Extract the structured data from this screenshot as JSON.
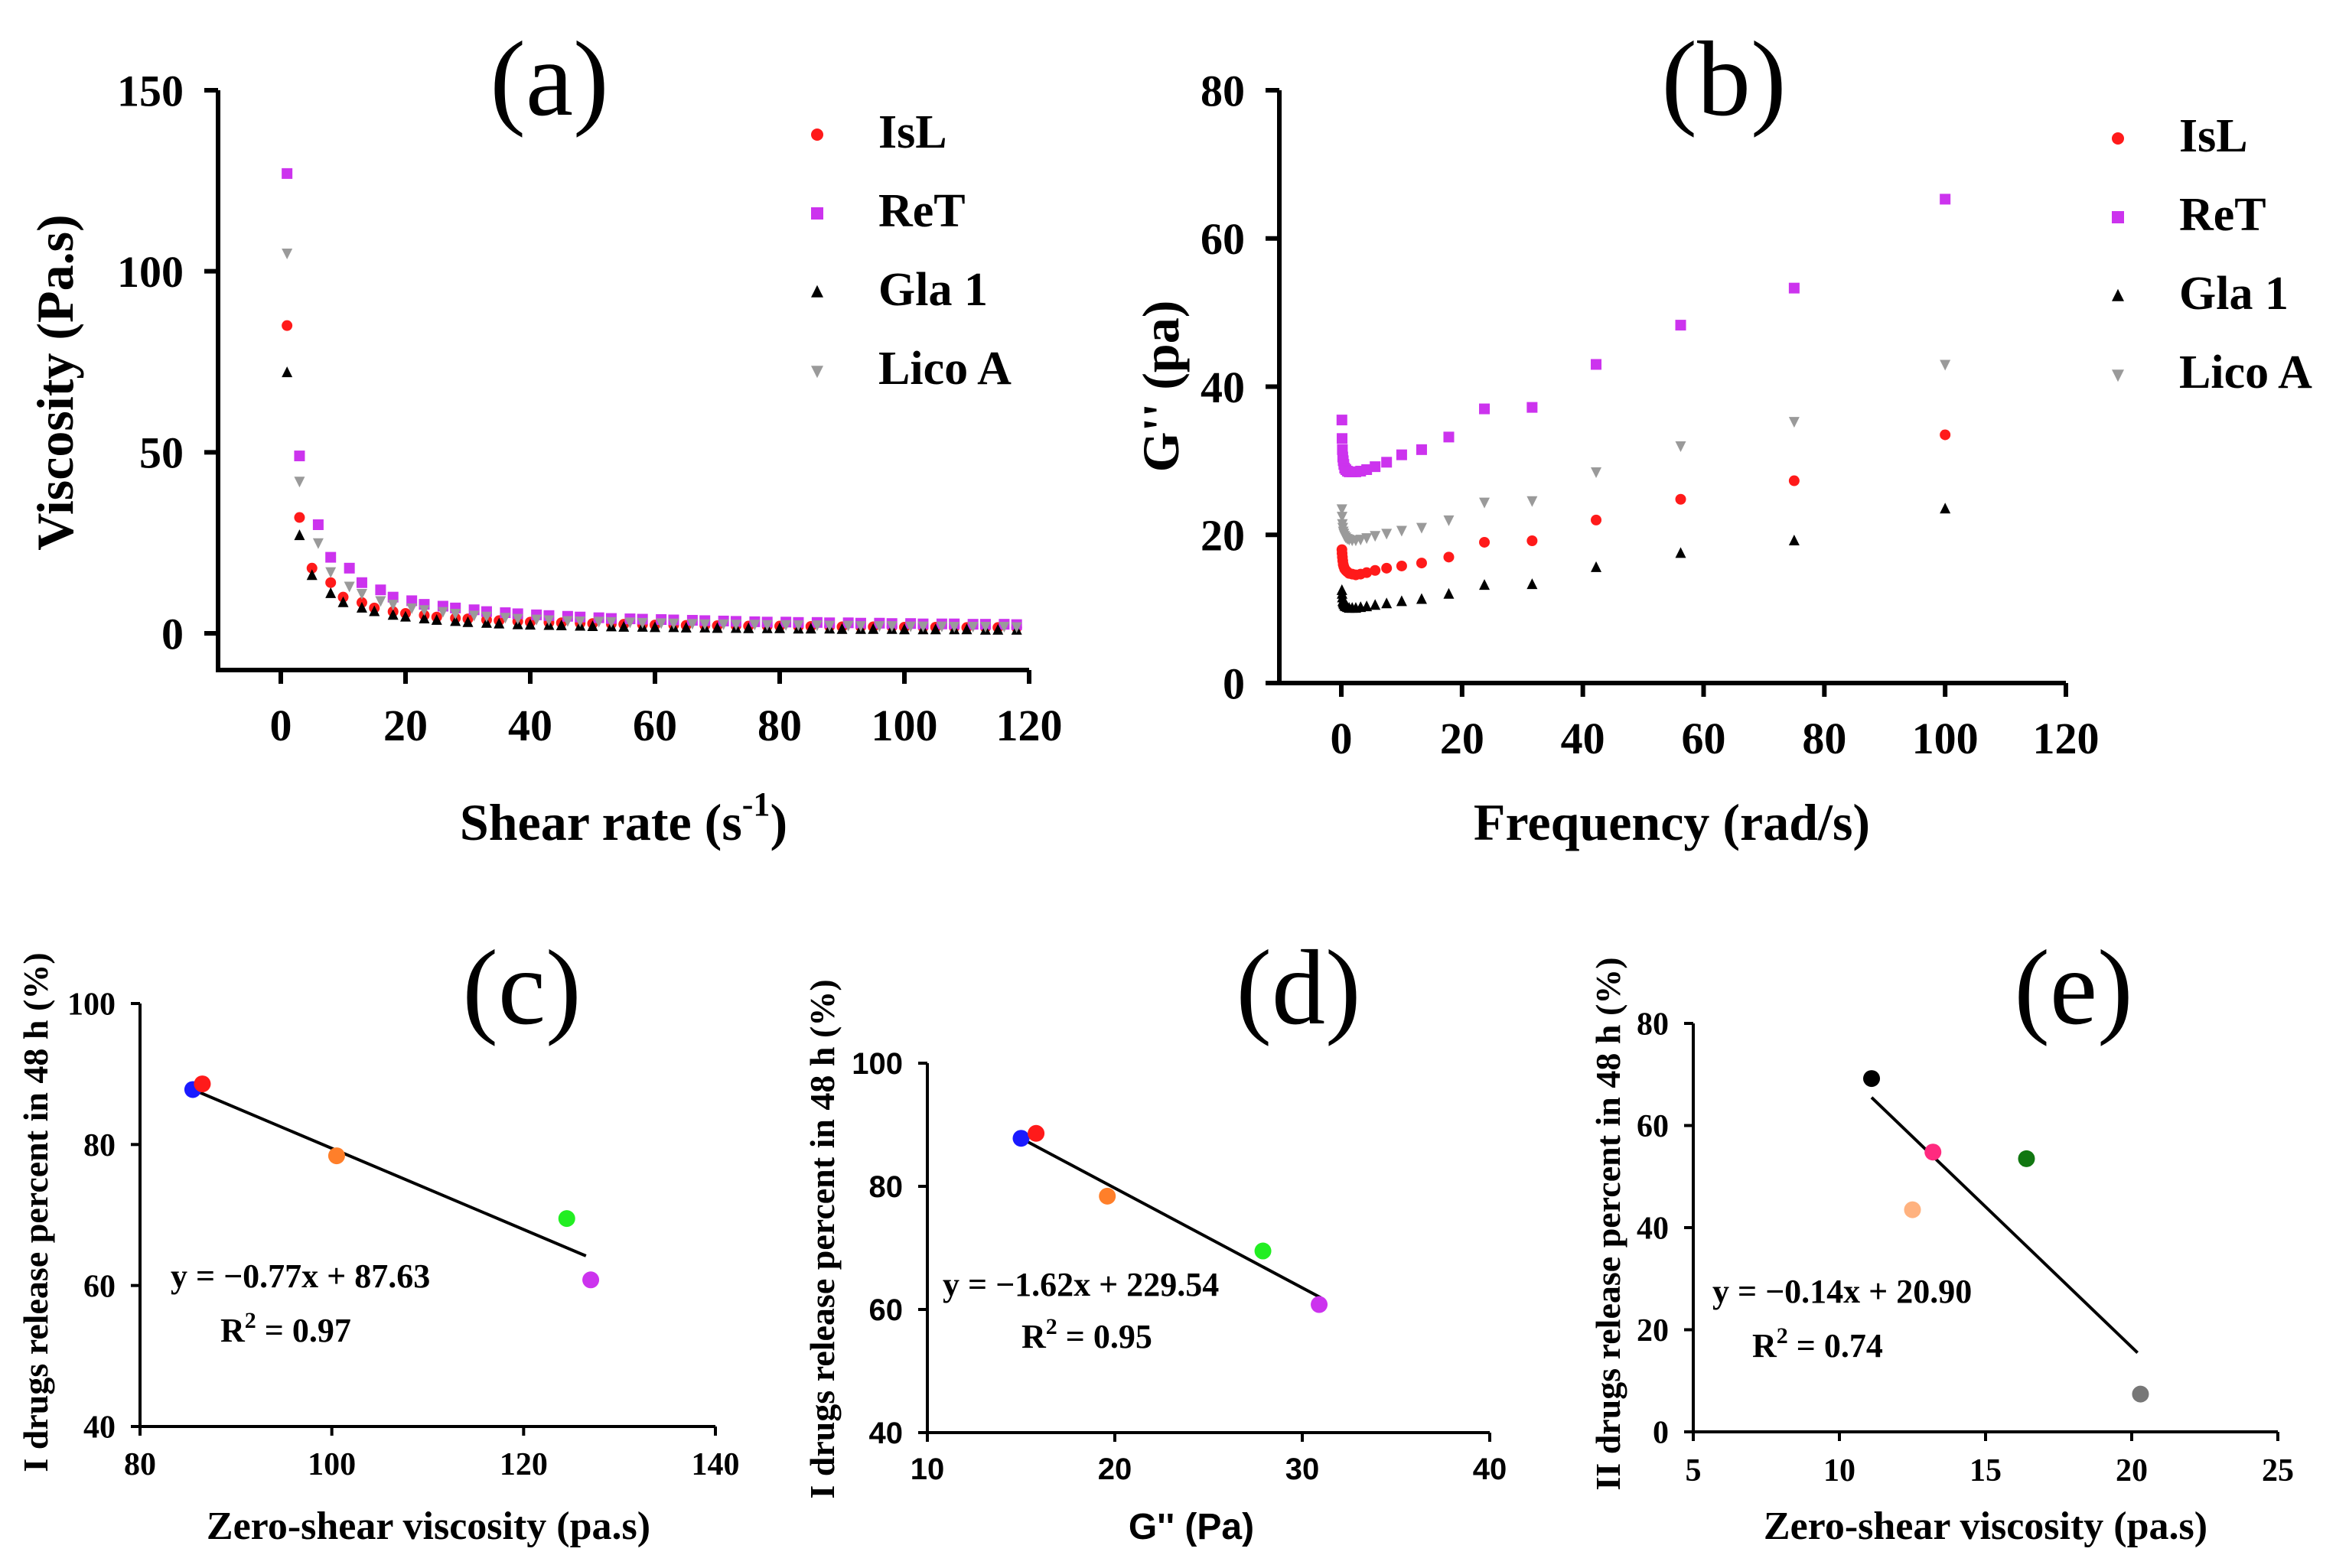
{
  "colors": {
    "isl": "#ff1a1a",
    "ret": "#cc33ee",
    "gla1": "#000000",
    "licoa": "#9a9a9a",
    "blue": "#1a1aff",
    "red": "#ff1a1a",
    "orange": "#ff7f2a",
    "green": "#22ee22",
    "purple": "#cc33ee",
    "black": "#000000",
    "pink": "#ff2a7f",
    "peach": "#ffb27f",
    "darkgreen": "#117711",
    "gray": "#777777"
  },
  "chart_data": [
    {
      "id": "a",
      "type": "scatter",
      "panel_label": "(a)",
      "xlabel_main": "Shear rate (s",
      "xlabel_sup": "-1",
      "xlabel_end": ")",
      "ylabel": "Viscosity (Pa.s)",
      "xlim": [
        -10,
        120
      ],
      "ylim": [
        -10,
        150
      ],
      "xticks": [
        0,
        20,
        40,
        60,
        80,
        100,
        120
      ],
      "yticks": [
        0,
        50,
        100,
        150
      ],
      "legend": [
        "IsL",
        "ReT",
        "Gla 1",
        "Lico A"
      ],
      "series": [
        {
          "name": "IsL",
          "marker": "circle",
          "color_key": "isl",
          "x": [
            1,
            3,
            5,
            8,
            10,
            13,
            15,
            18,
            20,
            23,
            25,
            28,
            30,
            33,
            35,
            38,
            40,
            43,
            45,
            48,
            50,
            53,
            55,
            58,
            60,
            63,
            65,
            68,
            70,
            73,
            75,
            78,
            80,
            83,
            85,
            88,
            90,
            93,
            95,
            98,
            100,
            103,
            105,
            108,
            110,
            113,
            115,
            118
          ],
          "y": [
            85,
            32,
            18,
            14,
            10,
            8.5,
            7,
            6,
            5.5,
            5,
            4.5,
            4.2,
            4,
            3.7,
            3.5,
            3.3,
            3.1,
            3,
            2.9,
            2.8,
            2.7,
            2.6,
            2.5,
            2.4,
            2.3,
            2.3,
            2.2,
            2.2,
            2.1,
            2.1,
            2,
            2,
            2,
            1.9,
            1.9,
            1.9,
            1.8,
            1.8,
            1.8,
            1.8,
            1.7,
            1.7,
            1.7,
            1.7,
            1.6,
            1.6,
            1.6,
            1.6
          ]
        },
        {
          "name": "ReT",
          "marker": "square",
          "color_key": "ret",
          "x": [
            1,
            3,
            6,
            8,
            11,
            13,
            16,
            18,
            21,
            23,
            26,
            28,
            31,
            33,
            36,
            38,
            41,
            43,
            46,
            48,
            51,
            53,
            56,
            58,
            61,
            63,
            66,
            68,
            71,
            73,
            76,
            78,
            81,
            83,
            86,
            88,
            91,
            93,
            96,
            98,
            101,
            103,
            106,
            108,
            111,
            113,
            116,
            118
          ],
          "y": [
            127,
            49,
            30,
            21,
            18,
            14,
            12,
            10,
            9,
            8,
            7.5,
            7,
            6.5,
            6,
            5.7,
            5.4,
            5.1,
            4.9,
            4.7,
            4.5,
            4.3,
            4.1,
            4,
            3.9,
            3.8,
            3.7,
            3.6,
            3.5,
            3.4,
            3.3,
            3.2,
            3.1,
            3.1,
            3,
            3,
            2.9,
            2.9,
            2.8,
            2.8,
            2.7,
            2.7,
            2.6,
            2.6,
            2.6,
            2.5,
            2.5,
            2.5,
            2.4
          ]
        },
        {
          "name": "Gla 1",
          "marker": "triangle",
          "color_key": "gla1",
          "x": [
            1,
            3,
            5,
            8,
            10,
            13,
            15,
            18,
            20,
            23,
            25,
            28,
            30,
            33,
            35,
            38,
            40,
            43,
            45,
            48,
            50,
            53,
            55,
            58,
            60,
            63,
            65,
            68,
            70,
            73,
            75,
            78,
            80,
            83,
            85,
            88,
            90,
            93,
            95,
            98,
            100,
            103,
            105,
            108,
            110,
            113,
            115,
            118
          ],
          "y": [
            72,
            27,
            16,
            11,
            8.5,
            7,
            6,
            5,
            4.5,
            4,
            3.6,
            3.3,
            3,
            2.8,
            2.6,
            2.4,
            2.3,
            2.2,
            2.1,
            2,
            1.9,
            1.8,
            1.7,
            1.7,
            1.6,
            1.6,
            1.5,
            1.5,
            1.4,
            1.4,
            1.3,
            1.3,
            1.3,
            1.2,
            1.2,
            1.2,
            1.1,
            1.1,
            1.1,
            1.1,
            1,
            1,
            1,
            1,
            1,
            0.9,
            0.9,
            0.9
          ]
        },
        {
          "name": "Lico A",
          "marker": "triangle-down",
          "color_key": "licoa",
          "x": [
            1,
            3,
            6,
            8,
            11,
            13,
            16,
            18,
            21,
            23,
            26,
            28,
            31,
            33,
            36,
            38,
            41,
            43,
            46,
            48,
            51,
            53,
            56,
            58,
            61,
            63,
            66,
            68,
            71,
            73,
            76,
            78,
            81,
            83,
            86,
            88,
            91,
            93,
            96,
            98,
            101,
            103,
            106,
            108,
            111,
            113,
            116,
            118
          ],
          "y": [
            105,
            42,
            25,
            17,
            13,
            11,
            9,
            8,
            7,
            6.5,
            6,
            5.5,
            5,
            4.7,
            4.4,
            4.1,
            3.9,
            3.7,
            3.5,
            3.4,
            3.3,
            3.2,
            3.1,
            3,
            2.9,
            2.8,
            2.7,
            2.6,
            2.6,
            2.5,
            2.5,
            2.4,
            2.4,
            2.3,
            2.3,
            2.2,
            2.2,
            2.1,
            2.1,
            2.1,
            2,
            2,
            2,
            1.9,
            1.9,
            1.9,
            1.9,
            1.8
          ]
        }
      ]
    },
    {
      "id": "b",
      "type": "scatter",
      "panel_label": "(b)",
      "xlabel": "Frequency (rad/s)",
      "ylabel": "G'' (pa)",
      "xlim": [
        -10,
        120
      ],
      "ylim": [
        0,
        80
      ],
      "xticks": [
        0,
        20,
        40,
        60,
        80,
        100,
        120
      ],
      "yticks": [
        0,
        20,
        40,
        60,
        80
      ],
      "legend": [
        "IsL",
        "ReT",
        "Gla 1",
        "Lico A"
      ],
      "series": [
        {
          "name": "IsL",
          "marker": "circle",
          "color_key": "isl",
          "x": [
            0.1,
            0.13,
            0.18,
            0.24,
            0.32,
            0.42,
            0.56,
            0.75,
            1,
            1.3,
            1.8,
            2.4,
            3.2,
            4.2,
            5.6,
            7.5,
            10,
            13.3,
            17.8,
            23.7,
            31.6,
            42.2,
            56.2,
            75,
            100
          ],
          "y": [
            18,
            17.5,
            17,
            16.5,
            16,
            15.7,
            15.4,
            15.2,
            15,
            14.8,
            14.7,
            14.6,
            14.7,
            14.9,
            15.2,
            15.5,
            15.8,
            16.2,
            17,
            19,
            19.2,
            22,
            24.8,
            27.3,
            33.5
          ]
        },
        {
          "name": "ReT",
          "marker": "square",
          "color_key": "ret",
          "x": [
            0.1,
            0.13,
            0.18,
            0.24,
            0.32,
            0.42,
            0.56,
            0.75,
            1,
            1.3,
            1.8,
            2.4,
            3.2,
            4.2,
            5.6,
            7.5,
            10,
            13.3,
            17.8,
            23.7,
            31.6,
            42.2,
            56.2,
            75,
            100
          ],
          "y": [
            35.5,
            33,
            31.5,
            30.5,
            30,
            29.5,
            29,
            28.8,
            28.6,
            28.5,
            28.5,
            28.5,
            28.6,
            28.8,
            29.2,
            29.8,
            30.8,
            31.5,
            33.2,
            37,
            37.2,
            43,
            48.3,
            53.3,
            65.3
          ]
        },
        {
          "name": "Gla 1",
          "marker": "triangle",
          "color_key": "gla1",
          "x": [
            0.1,
            0.13,
            0.18,
            0.24,
            0.32,
            0.42,
            0.56,
            0.75,
            1,
            1.3,
            1.8,
            2.4,
            3.2,
            4.2,
            5.6,
            7.5,
            10,
            13.3,
            17.8,
            23.7,
            31.6,
            42.2,
            56.2,
            75,
            100
          ],
          "y": [
            12.5,
            12,
            11.5,
            11,
            10.8,
            10.6,
            10.4,
            10.3,
            10.2,
            10.1,
            10.1,
            10.1,
            10.2,
            10.3,
            10.5,
            10.7,
            11,
            11.3,
            12,
            13.2,
            13.3,
            15.6,
            17.5,
            19.2,
            23.5
          ]
        },
        {
          "name": "Lico A",
          "marker": "triangle-down",
          "color_key": "licoa",
          "x": [
            0.1,
            0.13,
            0.18,
            0.24,
            0.32,
            0.42,
            0.56,
            0.75,
            1,
            1.3,
            1.8,
            2.4,
            3.2,
            4.2,
            5.6,
            7.5,
            10,
            13.3,
            17.8,
            23.7,
            31.6,
            42.2,
            56.2,
            75,
            100
          ],
          "y": [
            23.5,
            22.5,
            21.5,
            21,
            20.5,
            20.2,
            19.9,
            19.7,
            19.5,
            19.4,
            19.3,
            19.3,
            19.4,
            19.6,
            19.9,
            20.2,
            20.6,
            21,
            22,
            24.4,
            24.6,
            28.5,
            32,
            35.3,
            43
          ]
        }
      ]
    },
    {
      "id": "c",
      "type": "scatter",
      "panel_label": "(c)",
      "xlabel": "Zero-shear viscosity (pa.s)",
      "ylabel": "I drugs release percent in 48 h (%)",
      "xlim": [
        80,
        140
      ],
      "ylim": [
        40,
        100
      ],
      "xticks": [
        80,
        100,
        120,
        140
      ],
      "yticks": [
        40,
        60,
        80,
        100
      ],
      "equation": "y = −0.77x + 87.63",
      "r2_prefix": "R",
      "r2_sup": "2",
      "r2_suffix": " = 0.97",
      "fit_line": {
        "x": [
          85.5,
          126.5
        ],
        "y": [
          87.8,
          64.2
        ]
      },
      "points": [
        {
          "x": 85.5,
          "y": 87.8,
          "color_key": "blue"
        },
        {
          "x": 86.5,
          "y": 88.6,
          "color_key": "red"
        },
        {
          "x": 100.5,
          "y": 78.4,
          "color_key": "orange"
        },
        {
          "x": 124.5,
          "y": 69.5,
          "color_key": "green"
        },
        {
          "x": 127,
          "y": 60.8,
          "color_key": "purple"
        }
      ]
    },
    {
      "id": "d",
      "type": "scatter",
      "panel_label": "(d)",
      "xlabel": "G'' (Pa)",
      "ylabel": "I drugs release percent in 48 h (%)",
      "xlim": [
        10,
        40
      ],
      "ylim": [
        40,
        100
      ],
      "xticks": [
        10,
        20,
        30,
        40
      ],
      "yticks": [
        40,
        60,
        80,
        100
      ],
      "equation": "y = −1.62x + 229.54",
      "r2_prefix": "R",
      "r2_sup": "2",
      "r2_suffix": " = 0.95",
      "fit_line": {
        "x": [
          15,
          31
        ],
        "y": [
          87.8,
          61.9
        ]
      },
      "points": [
        {
          "x": 15,
          "y": 87.8,
          "color_key": "blue"
        },
        {
          "x": 15.8,
          "y": 88.6,
          "color_key": "red"
        },
        {
          "x": 19.6,
          "y": 78.4,
          "color_key": "orange"
        },
        {
          "x": 27.9,
          "y": 69.5,
          "color_key": "green"
        },
        {
          "x": 30.9,
          "y": 60.8,
          "color_key": "purple"
        }
      ]
    },
    {
      "id": "e",
      "type": "scatter",
      "panel_label": "(e)",
      "xlabel": "Zero-shear viscosity (pa.s)",
      "ylabel": "II drugs release percent in 48 h (%)",
      "xlim": [
        5,
        25
      ],
      "ylim": [
        0,
        80
      ],
      "xticks": [
        5,
        10,
        15,
        20,
        25
      ],
      "yticks": [
        0,
        20,
        40,
        60,
        80
      ],
      "equation": "y = −0.14x + 20.90",
      "r2_prefix": "R",
      "r2_sup": "2",
      "r2_suffix": " = 0.74",
      "fit_line": {
        "x": [
          11.1,
          20.2
        ],
        "y": [
          65.5,
          15.5
        ]
      },
      "points": [
        {
          "x": 11.1,
          "y": 69.2,
          "color_key": "black"
        },
        {
          "x": 12.5,
          "y": 43.5,
          "color_key": "peach"
        },
        {
          "x": 13.2,
          "y": 54.8,
          "color_key": "pink"
        },
        {
          "x": 16.4,
          "y": 53.5,
          "color_key": "darkgreen"
        },
        {
          "x": 20.3,
          "y": 7.4,
          "color_key": "gray"
        }
      ]
    }
  ]
}
